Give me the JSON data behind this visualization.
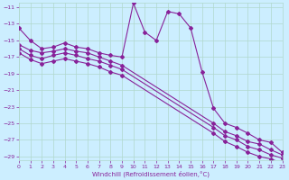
{
  "xlabel": "Windchill (Refroidissement éolien,°C)",
  "bg_color": "#cceeff",
  "grid_color": "#b0d8cc",
  "line_color": "#882299",
  "x_ticks": [
    0,
    1,
    2,
    3,
    4,
    5,
    6,
    7,
    8,
    9,
    10,
    11,
    12,
    13,
    14,
    15,
    16,
    17,
    18,
    19,
    20,
    21,
    22,
    23
  ],
  "y_ticks": [
    -11,
    -13,
    -15,
    -17,
    -19,
    -21,
    -23,
    -25,
    -27,
    -29
  ],
  "xlim": [
    0,
    23
  ],
  "ylim": [
    -29.5,
    -10.5
  ],
  "series1_x": [
    0,
    1,
    2,
    3,
    4,
    5,
    6,
    7,
    8,
    9,
    10,
    11,
    12,
    13,
    14,
    15,
    16,
    17,
    18,
    19,
    20,
    21,
    22,
    23
  ],
  "series1_y": [
    -13.5,
    -15.0,
    -16.0,
    -15.8,
    -15.3,
    -15.8,
    -16.0,
    -16.5,
    -16.8,
    -17.0,
    -10.5,
    -14.0,
    -15.0,
    -11.5,
    -11.8,
    -13.5,
    -18.8,
    -23.2,
    -25.0,
    -25.5,
    -26.2,
    -27.0,
    -27.3,
    -28.5
  ],
  "series2_x": [
    0,
    1,
    2,
    3,
    4,
    5,
    6,
    7,
    8,
    9,
    17,
    18,
    19,
    20,
    21,
    22,
    23
  ],
  "series2_y": [
    -15.5,
    -16.2,
    -16.5,
    -16.3,
    -16.0,
    -16.3,
    -16.5,
    -17.0,
    -17.5,
    -18.0,
    -25.0,
    -26.0,
    -26.5,
    -27.2,
    -27.5,
    -28.2,
    -28.8
  ],
  "series3_x": [
    0,
    1,
    2,
    3,
    4,
    5,
    6,
    7,
    8,
    9,
    17,
    18,
    19,
    20,
    21,
    22,
    23
  ],
  "series3_y": [
    -16.0,
    -16.8,
    -17.2,
    -16.8,
    -16.5,
    -16.8,
    -17.2,
    -17.5,
    -18.0,
    -18.5,
    -25.5,
    -26.5,
    -27.0,
    -27.8,
    -28.2,
    -28.8,
    -29.2
  ],
  "series4_x": [
    0,
    1,
    2,
    3,
    4,
    5,
    6,
    7,
    8,
    9,
    17,
    18,
    19,
    20,
    21,
    22,
    23
  ],
  "series4_y": [
    -16.5,
    -17.3,
    -17.8,
    -17.5,
    -17.2,
    -17.5,
    -17.8,
    -18.2,
    -18.8,
    -19.2,
    -26.2,
    -27.2,
    -27.8,
    -28.5,
    -29.0,
    -29.3,
    -29.8
  ]
}
